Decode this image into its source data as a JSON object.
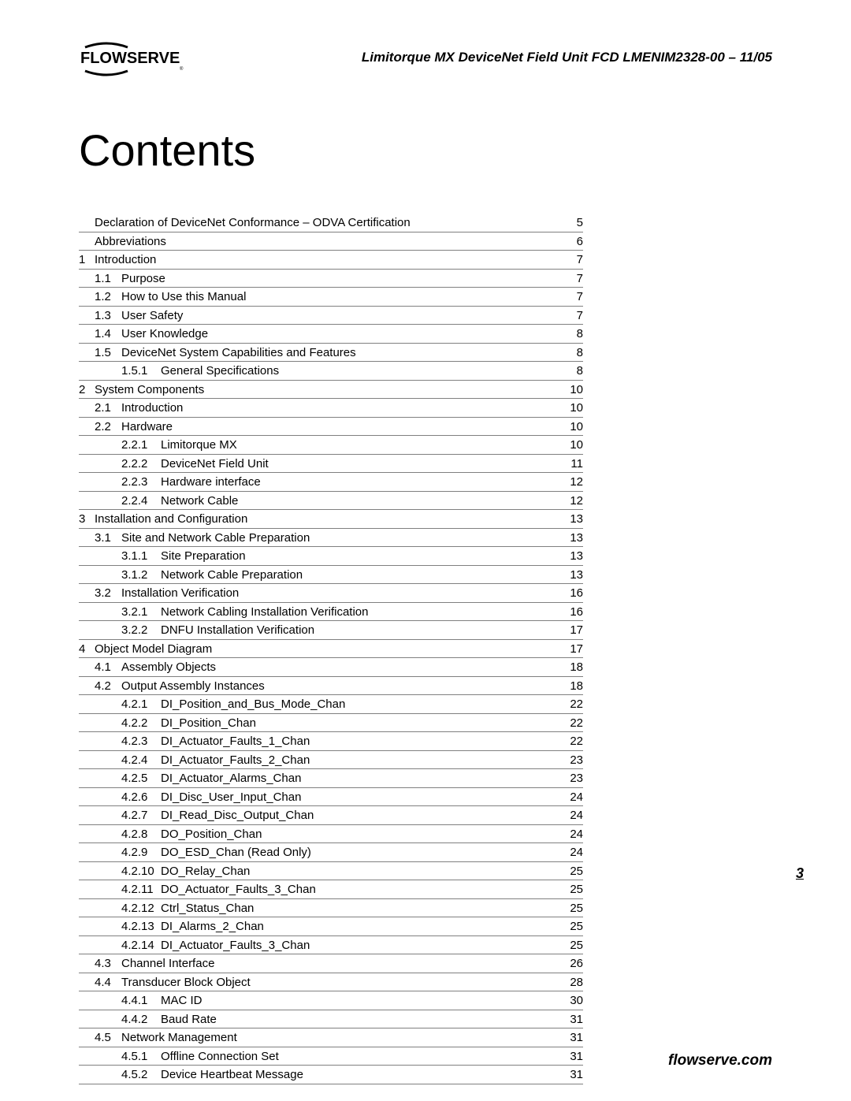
{
  "header": {
    "logo_text": "FLOWSERVE",
    "doc_title": "Limitorque MX DeviceNet Field Unit    FCD LMENIM2328-00 – 11/05"
  },
  "title": "Contents",
  "toc": [
    {
      "ch": "",
      "sec": "",
      "sub": "",
      "title": "Declaration of DeviceNet Conformance – ODVA Certification",
      "page": "5",
      "level": 0
    },
    {
      "ch": "",
      "sec": "",
      "sub": "",
      "title": "Abbreviations",
      "page": "6",
      "level": 0
    },
    {
      "ch": "1",
      "sec": "",
      "sub": "",
      "title": "Introduction",
      "page": "7",
      "level": 0
    },
    {
      "ch": "",
      "sec": "1.1",
      "sub": "",
      "title": "Purpose",
      "page": "7",
      "level": 1
    },
    {
      "ch": "",
      "sec": "1.2",
      "sub": "",
      "title": "How to Use this Manual",
      "page": "7",
      "level": 1
    },
    {
      "ch": "",
      "sec": "1.3",
      "sub": "",
      "title": "User Safety",
      "page": "7",
      "level": 1
    },
    {
      "ch": "",
      "sec": "1.4",
      "sub": "",
      "title": "User Knowledge",
      "page": "8",
      "level": 1
    },
    {
      "ch": "",
      "sec": "1.5",
      "sub": "",
      "title": "DeviceNet System Capabilities and Features",
      "page": "8",
      "level": 1
    },
    {
      "ch": "",
      "sec": "",
      "sub": "1.5.1",
      "title": "General Specifications",
      "page": "8",
      "level": 2
    },
    {
      "ch": "2",
      "sec": "",
      "sub": "",
      "title": "System Components",
      "page": "10",
      "level": 0
    },
    {
      "ch": "",
      "sec": "2.1",
      "sub": "",
      "title": "Introduction",
      "page": "10",
      "level": 1
    },
    {
      "ch": "",
      "sec": "2.2",
      "sub": "",
      "title": "Hardware",
      "page": "10",
      "level": 1
    },
    {
      "ch": "",
      "sec": "",
      "sub": "2.2.1",
      "title": "Limitorque MX",
      "page": "10",
      "level": 2
    },
    {
      "ch": "",
      "sec": "",
      "sub": "2.2.2",
      "title": "DeviceNet Field Unit",
      "page": "11",
      "level": 2
    },
    {
      "ch": "",
      "sec": "",
      "sub": "2.2.3",
      "title": "Hardware interface",
      "page": "12",
      "level": 2
    },
    {
      "ch": "",
      "sec": "",
      "sub": "2.2.4",
      "title": "Network Cable",
      "page": "12",
      "level": 2
    },
    {
      "ch": "3",
      "sec": "",
      "sub": "",
      "title": "Installation and Configuration",
      "page": "13",
      "level": 0
    },
    {
      "ch": "",
      "sec": "3.1",
      "sub": "",
      "title": "Site and Network Cable Preparation",
      "page": "13",
      "level": 1
    },
    {
      "ch": "",
      "sec": "",
      "sub": "3.1.1",
      "title": "Site Preparation",
      "page": "13",
      "level": 2
    },
    {
      "ch": "",
      "sec": "",
      "sub": "3.1.2",
      "title": "Network Cable Preparation",
      "page": "13",
      "level": 2
    },
    {
      "ch": "",
      "sec": "3.2",
      "sub": "",
      "title": "Installation Verification",
      "page": "16",
      "level": 1
    },
    {
      "ch": "",
      "sec": "",
      "sub": "3.2.1",
      "title": "Network Cabling Installation Verification",
      "page": "16",
      "level": 2
    },
    {
      "ch": "",
      "sec": "",
      "sub": "3.2.2",
      "title": "DNFU Installation Verification",
      "page": "17",
      "level": 2
    },
    {
      "ch": "4",
      "sec": "",
      "sub": "",
      "title": "Object Model Diagram",
      "page": "17",
      "level": 0
    },
    {
      "ch": "",
      "sec": "4.1",
      "sub": "",
      "title": "Assembly Objects",
      "page": "18",
      "level": 1
    },
    {
      "ch": "",
      "sec": "4.2",
      "sub": "",
      "title": "Output Assembly Instances",
      "page": "18",
      "level": 1
    },
    {
      "ch": "",
      "sec": "",
      "sub": "4.2.1",
      "title": "DI_Position_and_Bus_Mode_Chan",
      "page": "22",
      "level": 2
    },
    {
      "ch": "",
      "sec": "",
      "sub": "4.2.2",
      "title": "DI_Position_Chan",
      "page": "22",
      "level": 2
    },
    {
      "ch": "",
      "sec": "",
      "sub": "4.2.3",
      "title": "DI_Actuator_Faults_1_Chan",
      "page": "22",
      "level": 2
    },
    {
      "ch": "",
      "sec": "",
      "sub": "4.2.4",
      "title": "DI_Actuator_Faults_2_Chan",
      "page": "23",
      "level": 2
    },
    {
      "ch": "",
      "sec": "",
      "sub": "4.2.5",
      "title": "DI_Actuator_Alarms_Chan",
      "page": "23",
      "level": 2
    },
    {
      "ch": "",
      "sec": "",
      "sub": "4.2.6",
      "title": "DI_Disc_User_Input_Chan",
      "page": "24",
      "level": 2
    },
    {
      "ch": "",
      "sec": "",
      "sub": "4.2.7",
      "title": "DI_Read_Disc_Output_Chan",
      "page": "24",
      "level": 2
    },
    {
      "ch": "",
      "sec": "",
      "sub": "4.2.8",
      "title": "DO_Position_Chan",
      "page": "24",
      "level": 2
    },
    {
      "ch": "",
      "sec": "",
      "sub": "4.2.9",
      "title": "DO_ESD_Chan (Read Only)",
      "page": "24",
      "level": 2
    },
    {
      "ch": "",
      "sec": "",
      "sub": "4.2.10",
      "title": "DO_Relay_Chan",
      "page": "25",
      "level": 2
    },
    {
      "ch": "",
      "sec": "",
      "sub": "4.2.11",
      "title": "DO_Actuator_Faults_3_Chan",
      "page": "25",
      "level": 2
    },
    {
      "ch": "",
      "sec": "",
      "sub": "4.2.12",
      "title": "Ctrl_Status_Chan",
      "page": "25",
      "level": 2
    },
    {
      "ch": "",
      "sec": "",
      "sub": "4.2.13",
      "title": "DI_Alarms_2_Chan",
      "page": "25",
      "level": 2
    },
    {
      "ch": "",
      "sec": "",
      "sub": "4.2.14",
      "title": "DI_Actuator_Faults_3_Chan",
      "page": "25",
      "level": 2
    },
    {
      "ch": "",
      "sec": "4.3",
      "sub": "",
      "title": "Channel Interface",
      "page": "26",
      "level": 1
    },
    {
      "ch": "",
      "sec": "4.4",
      "sub": "",
      "title": "Transducer Block Object",
      "page": "28",
      "level": 1
    },
    {
      "ch": "",
      "sec": "",
      "sub": "4.4.1",
      "title": "MAC ID",
      "page": "30",
      "level": 2
    },
    {
      "ch": "",
      "sec": "",
      "sub": "4.4.2",
      "title": "Baud Rate",
      "page": "31",
      "level": 2
    },
    {
      "ch": "",
      "sec": "4.5",
      "sub": "",
      "title": "Network Management",
      "page": "31",
      "level": 1
    },
    {
      "ch": "",
      "sec": "",
      "sub": "4.5.1",
      "title": "Offline Connection Set",
      "page": "31",
      "level": 2
    },
    {
      "ch": "",
      "sec": "",
      "sub": "4.5.2",
      "title": "Device Heartbeat Message",
      "page": "31",
      "level": 2
    }
  ],
  "page_number": "3",
  "footer": "flowserve.com"
}
